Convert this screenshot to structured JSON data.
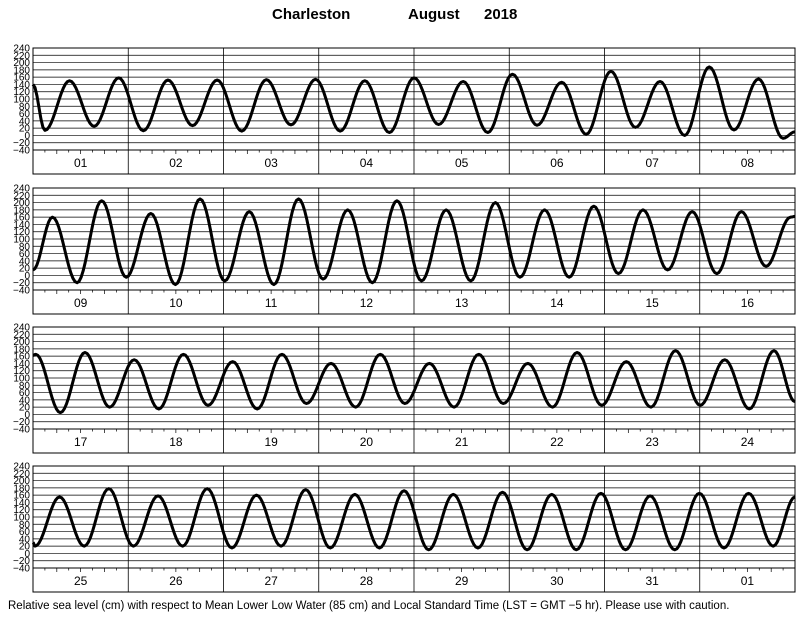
{
  "title": {
    "station": "Charleston",
    "month": "August",
    "year": "2018"
  },
  "footnote": "Relative sea level (cm) with respect to Mean Lower Low Water (85 cm) and Local Standard Time (LST = GMT −5 hr). Please use with caution.",
  "chart_data": {
    "type": "line",
    "ylabel": "Relative sea level (cm)",
    "ylim": [
      -40,
      240
    ],
    "yticks": [
      -40,
      -20,
      0,
      20,
      40,
      60,
      80,
      100,
      120,
      140,
      160,
      180,
      200,
      220,
      240
    ],
    "ytick_labels": [
      "−40",
      "−20",
      "0",
      "20",
      "40",
      "60",
      "80",
      "100",
      "120",
      "140",
      "160",
      "180",
      "200",
      "220",
      "240"
    ],
    "x_unit": "hours from start of panel (LST)",
    "grid": true,
    "panels": [
      {
        "days": [
          "01",
          "02",
          "03",
          "04",
          "05",
          "06",
          "07",
          "08"
        ],
        "series": [
          {
            "x": [
              0,
              3.0,
              9.2,
              15.4,
              21.6,
              27.8,
              34.0,
              40.2,
              46.4,
              52.6,
              58.8,
              65.0,
              71.2,
              77.4,
              83.6,
              89.8,
              96.0,
              102.2,
              108.4,
              114.6,
              120.8,
              127.0,
              133.2,
              139.4,
              145.6,
              151.8,
              158.0,
              164.2,
              170.4,
              176.6,
              182.8,
              189.0,
              192
            ],
            "y": [
              140,
              14,
              150,
              25,
              158,
              13,
              152,
              27,
              152,
              12,
              153,
              29,
              154,
              12,
              150,
              8,
              158,
              30,
              148,
              8,
              168,
              28,
              146,
              3,
              176,
              22,
              148,
              0,
              188,
              15,
              155,
              -8,
              10
            ]
          }
        ]
      },
      {
        "days": [
          "09",
          "10",
          "11",
          "12",
          "13",
          "14",
          "15",
          "16"
        ],
        "series": [
          {
            "x": [
              0,
              4.9,
              11.1,
              17.3,
              23.5,
              29.7,
              35.9,
              42.1,
              48.3,
              54.5,
              60.7,
              66.9,
              73.1,
              79.3,
              85.5,
              91.7,
              97.9,
              104.1,
              110.3,
              116.5,
              122.7,
              128.9,
              135.1,
              141.3,
              147.5,
              153.7,
              159.9,
              166.1,
              172.3,
              178.5,
              184.7,
              190.9,
              192
            ],
            "y": [
              15,
              160,
              -20,
              205,
              -5,
              170,
              -25,
              210,
              -15,
              175,
              -25,
              210,
              -10,
              180,
              -20,
              205,
              -15,
              180,
              -15,
              200,
              -5,
              180,
              -5,
              190,
              5,
              180,
              15,
              175,
              5,
              175,
              25,
              160,
              162
            ]
          }
        ]
      },
      {
        "days": [
          "17",
          "18",
          "19",
          "20",
          "21",
          "22",
          "23",
          "24"
        ],
        "series": [
          {
            "x": [
              0,
              0.7,
              6.9,
              13.1,
              19.3,
              25.5,
              31.7,
              37.9,
              44.1,
              50.3,
              56.5,
              62.7,
              68.9,
              75.1,
              81.3,
              87.5,
              93.7,
              99.9,
              106.1,
              112.3,
              118.5,
              124.7,
              130.9,
              137.1,
              143.3,
              149.5,
              155.7,
              161.9,
              168.1,
              174.3,
              180.5,
              186.7,
              192
            ],
            "y": [
              162,
              165,
              5,
              170,
              20,
              150,
              15,
              165,
              25,
              145,
              15,
              165,
              30,
              140,
              20,
              165,
              30,
              140,
              20,
              165,
              30,
              140,
              20,
              170,
              25,
              145,
              20,
              175,
              25,
              150,
              15,
              175,
              35
            ]
          }
        ]
      },
      {
        "days": [
          "25",
          "26",
          "27",
          "28",
          "29",
          "30",
          "31",
          "01"
        ],
        "series": [
          {
            "x": [
              0,
              0.5,
              6.7,
              12.9,
              19.1,
              25.3,
              31.5,
              37.7,
              43.9,
              50.1,
              56.3,
              62.5,
              68.7,
              74.9,
              81.1,
              87.3,
              93.5,
              99.7,
              105.9,
              112.1,
              118.3,
              124.5,
              130.7,
              136.9,
              143.1,
              149.3,
              155.5,
              161.7,
              167.9,
              174.1,
              180.3,
              186.5,
              192
            ],
            "y": [
              30,
              20,
              155,
              20,
              178,
              20,
              158,
              20,
              178,
              15,
              160,
              20,
              175,
              15,
              162,
              15,
              172,
              10,
              162,
              15,
              168,
              10,
              162,
              10,
              165,
              10,
              158,
              10,
              165,
              15,
              165,
              20,
              155
            ]
          }
        ]
      }
    ]
  }
}
